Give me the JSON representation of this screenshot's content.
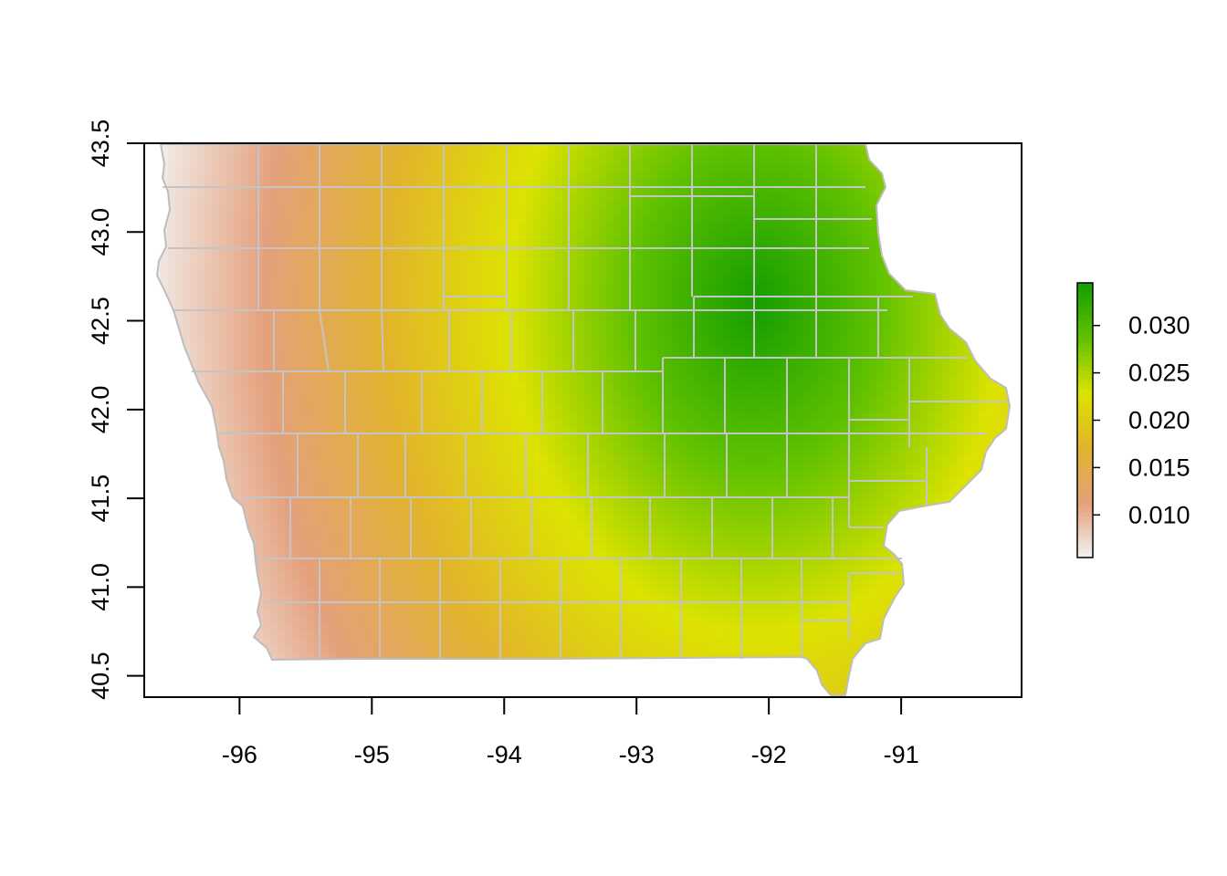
{
  "chart_data": {
    "type": "heatmap",
    "title": "",
    "xlabel": "",
    "ylabel": "",
    "xlim": [
      -96.72,
      -90.09
    ],
    "ylim": [
      40.38,
      43.5
    ],
    "x_ticks": [
      "-96",
      "-95",
      "-94",
      "-93",
      "-92",
      "-91"
    ],
    "x_tick_values": [
      -96,
      -95,
      -94,
      -93,
      -92,
      -91
    ],
    "y_ticks": [
      "40.5",
      "41.0",
      "41.5",
      "42.0",
      "42.5",
      "43.0",
      "43.5"
    ],
    "y_tick_values": [
      40.5,
      41.0,
      41.5,
      42.0,
      42.5,
      43.0,
      43.5
    ],
    "legend": {
      "placement": "right",
      "min": 0.0055,
      "max": 0.0345,
      "ticks": [
        "0.010",
        "0.015",
        "0.020",
        "0.025",
        "0.030"
      ],
      "tick_values": [
        0.01,
        0.015,
        0.02,
        0.025,
        0.03
      ],
      "palette": [
        "#f2f2f2",
        "#e4a07c",
        "#e2b42c",
        "#dde300",
        "#5fc100",
        "#169e00"
      ]
    },
    "surface": {
      "description_values": "surface value field (data units)",
      "peak_value": 0.0345,
      "peak_location": [
        -92.1,
        42.6
      ],
      "min_value": 0.0055
    },
    "border_color": "#c0c0c0"
  }
}
